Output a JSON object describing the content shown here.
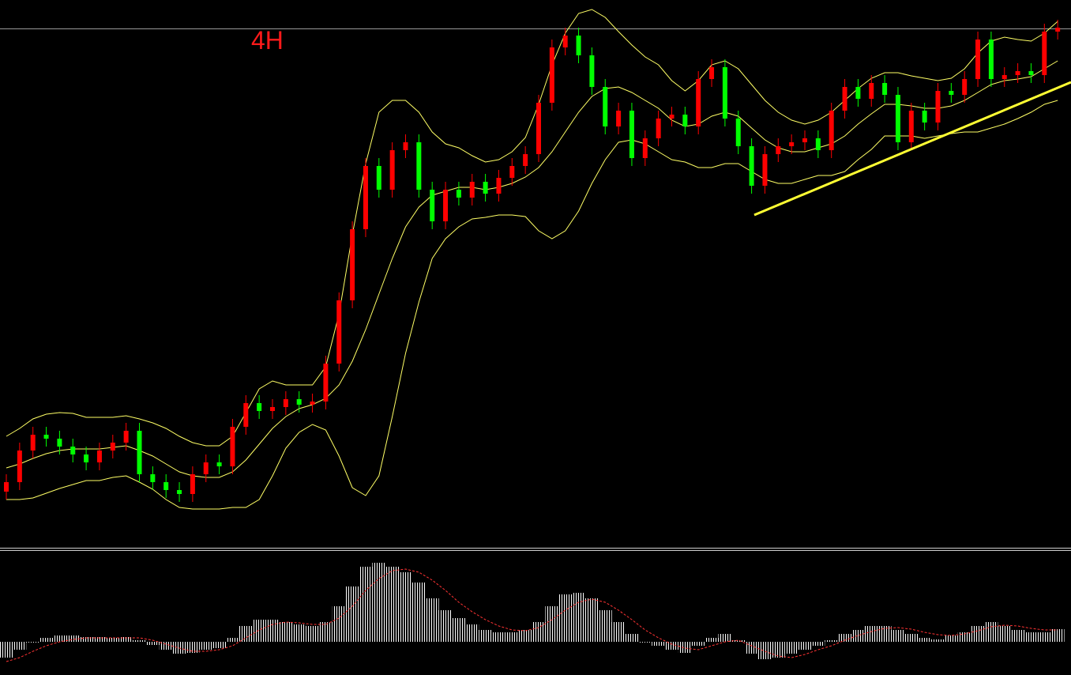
{
  "chart_data": [
    {
      "type": "candlestick",
      "title": "4H",
      "title_color": "#ff1a1a",
      "up_color": "#ff0000",
      "down_color": "#00ff00",
      "band_color": "#ffff66",
      "ylim": [
        0,
        692
      ],
      "open": [
        70,
        82,
        122,
        142,
        137,
        127,
        117,
        107,
        122,
        132,
        147,
        92,
        82,
        72,
        67,
        92,
        107,
        102,
        152,
        182,
        172,
        177,
        187,
        180,
        184,
        232,
        312,
        402,
        482,
        452,
        502,
        512,
        452,
        412,
        452,
        442,
        462,
        447,
        467,
        482,
        497,
        562,
        632,
        647,
        622,
        582,
        532,
        552,
        492,
        517,
        542,
        547,
        532,
        592,
        607,
        542,
        507,
        457,
        497,
        507,
        512,
        517,
        502,
        552,
        582,
        567,
        587,
        572,
        512,
        552,
        537,
        577,
        572,
        592,
        642,
        592,
        597,
        602,
        597,
        652
      ],
      "close": [
        82,
        122,
        142,
        137,
        127,
        117,
        107,
        122,
        132,
        147,
        92,
        82,
        72,
        67,
        92,
        107,
        102,
        152,
        182,
        172,
        177,
        187,
        180,
        184,
        232,
        312,
        402,
        482,
        452,
        502,
        512,
        452,
        412,
        452,
        442,
        462,
        447,
        467,
        482,
        497,
        562,
        632,
        647,
        622,
        582,
        532,
        552,
        492,
        517,
        542,
        547,
        532,
        592,
        607,
        542,
        507,
        457,
        497,
        507,
        512,
        517,
        502,
        552,
        582,
        567,
        587,
        572,
        512,
        552,
        537,
        577,
        572,
        592,
        642,
        592,
        597,
        602,
        597,
        652,
        657
      ],
      "high": [
        92,
        132,
        152,
        152,
        147,
        137,
        127,
        132,
        142,
        157,
        157,
        102,
        92,
        82,
        102,
        117,
        117,
        162,
        192,
        192,
        187,
        197,
        197,
        194,
        242,
        322,
        412,
        492,
        492,
        512,
        522,
        522,
        462,
        462,
        462,
        472,
        472,
        477,
        492,
        507,
        572,
        642,
        657,
        657,
        632,
        592,
        562,
        562,
        527,
        552,
        557,
        557,
        602,
        617,
        617,
        552,
        517,
        507,
        517,
        522,
        527,
        527,
        562,
        592,
        592,
        597,
        597,
        582,
        562,
        562,
        587,
        587,
        602,
        652,
        652,
        607,
        612,
        612,
        662,
        667
      ],
      "low": [
        60,
        72,
        112,
        127,
        117,
        107,
        97,
        97,
        112,
        122,
        82,
        72,
        62,
        57,
        57,
        82,
        92,
        92,
        142,
        162,
        162,
        167,
        170,
        170,
        174,
        222,
        302,
        392,
        442,
        442,
        492,
        442,
        402,
        402,
        432,
        432,
        437,
        437,
        457,
        472,
        487,
        552,
        622,
        612,
        572,
        522,
        522,
        482,
        482,
        507,
        532,
        522,
        522,
        582,
        532,
        497,
        447,
        447,
        487,
        497,
        502,
        492,
        492,
        542,
        557,
        557,
        562,
        502,
        502,
        527,
        527,
        562,
        562,
        582,
        582,
        582,
        587,
        587,
        587,
        642
      ],
      "upper": [
        140,
        150,
        162,
        168,
        170,
        169,
        164,
        164,
        164,
        166,
        162,
        157,
        150,
        140,
        132,
        128,
        128,
        140,
        170,
        200,
        210,
        205,
        205,
        205,
        228,
        295,
        395,
        485,
        550,
        565,
        565,
        550,
        525,
        510,
        505,
        495,
        487,
        490,
        500,
        518,
        560,
        610,
        650,
        675,
        680,
        670,
        652,
        635,
        620,
        610,
        590,
        577,
        590,
        610,
        615,
        605,
        585,
        565,
        550,
        540,
        535,
        540,
        550,
        565,
        580,
        593,
        600,
        600,
        596,
        593,
        590,
        593,
        605,
        625,
        640,
        645,
        642,
        640,
        650,
        665
      ],
      "middle": [
        100,
        105,
        112,
        118,
        122,
        124,
        124,
        124,
        126,
        128,
        122,
        115,
        105,
        95,
        90,
        88,
        88,
        95,
        110,
        130,
        150,
        165,
        175,
        180,
        188,
        205,
        235,
        275,
        320,
        365,
        405,
        430,
        445,
        450,
        455,
        455,
        452,
        455,
        460,
        468,
        480,
        500,
        525,
        550,
        570,
        580,
        582,
        575,
        565,
        555,
        540,
        532,
        535,
        545,
        550,
        545,
        530,
        515,
        505,
        500,
        500,
        505,
        510,
        520,
        535,
        548,
        560,
        560,
        558,
        555,
        555,
        558,
        565,
        575,
        585,
        590,
        592,
        595,
        605,
        615
      ],
      "lower": [
        60,
        60,
        62,
        68,
        74,
        79,
        84,
        84,
        88,
        90,
        82,
        73,
        60,
        50,
        48,
        48,
        48,
        50,
        50,
        60,
        90,
        125,
        145,
        155,
        148,
        115,
        75,
        65,
        90,
        165,
        245,
        310,
        365,
        390,
        405,
        415,
        417,
        420,
        420,
        418,
        400,
        390,
        400,
        425,
        460,
        490,
        512,
        515,
        510,
        500,
        490,
        487,
        480,
        480,
        485,
        485,
        475,
        465,
        460,
        460,
        465,
        470,
        470,
        475,
        490,
        503,
        520,
        520,
        520,
        517,
        520,
        523,
        525,
        525,
        530,
        535,
        542,
        550,
        560,
        565
      ]
    },
    {
      "type": "macd",
      "bar_color": "#ffffff",
      "signal_color": "#ff3333",
      "ylim": [
        -42,
        115
      ],
      "histogram": [
        -20,
        -10,
        0,
        5,
        8,
        8,
        6,
        6,
        5,
        6,
        2,
        -4,
        -10,
        -15,
        -14,
        -10,
        -8,
        5,
        20,
        28,
        28,
        25,
        22,
        20,
        25,
        45,
        70,
        95,
        100,
        95,
        88,
        75,
        55,
        40,
        30,
        22,
        15,
        12,
        12,
        15,
        25,
        45,
        60,
        62,
        55,
        40,
        25,
        10,
        0,
        -5,
        -10,
        -14,
        -5,
        5,
        10,
        2,
        -15,
        -22,
        -20,
        -15,
        -10,
        -5,
        2,
        10,
        15,
        20,
        20,
        15,
        10,
        5,
        3,
        8,
        12,
        20,
        25,
        20,
        15,
        12,
        12,
        16
      ],
      "signal": [
        -25,
        -20,
        -12,
        -5,
        0,
        3,
        5,
        5,
        5,
        5,
        5,
        2,
        -3,
        -8,
        -12,
        -12,
        -10,
        -5,
        5,
        15,
        22,
        25,
        24,
        22,
        22,
        30,
        45,
        65,
        80,
        90,
        92,
        88,
        78,
        65,
        50,
        38,
        28,
        20,
        15,
        14,
        18,
        28,
        40,
        50,
        54,
        50,
        40,
        28,
        15,
        5,
        -3,
        -8,
        -10,
        -5,
        0,
        2,
        -5,
        -12,
        -18,
        -20,
        -16,
        -10,
        -5,
        2,
        8,
        13,
        17,
        18,
        16,
        12,
        9,
        8,
        10,
        14,
        19,
        21,
        20,
        17,
        15,
        15
      ]
    }
  ]
}
